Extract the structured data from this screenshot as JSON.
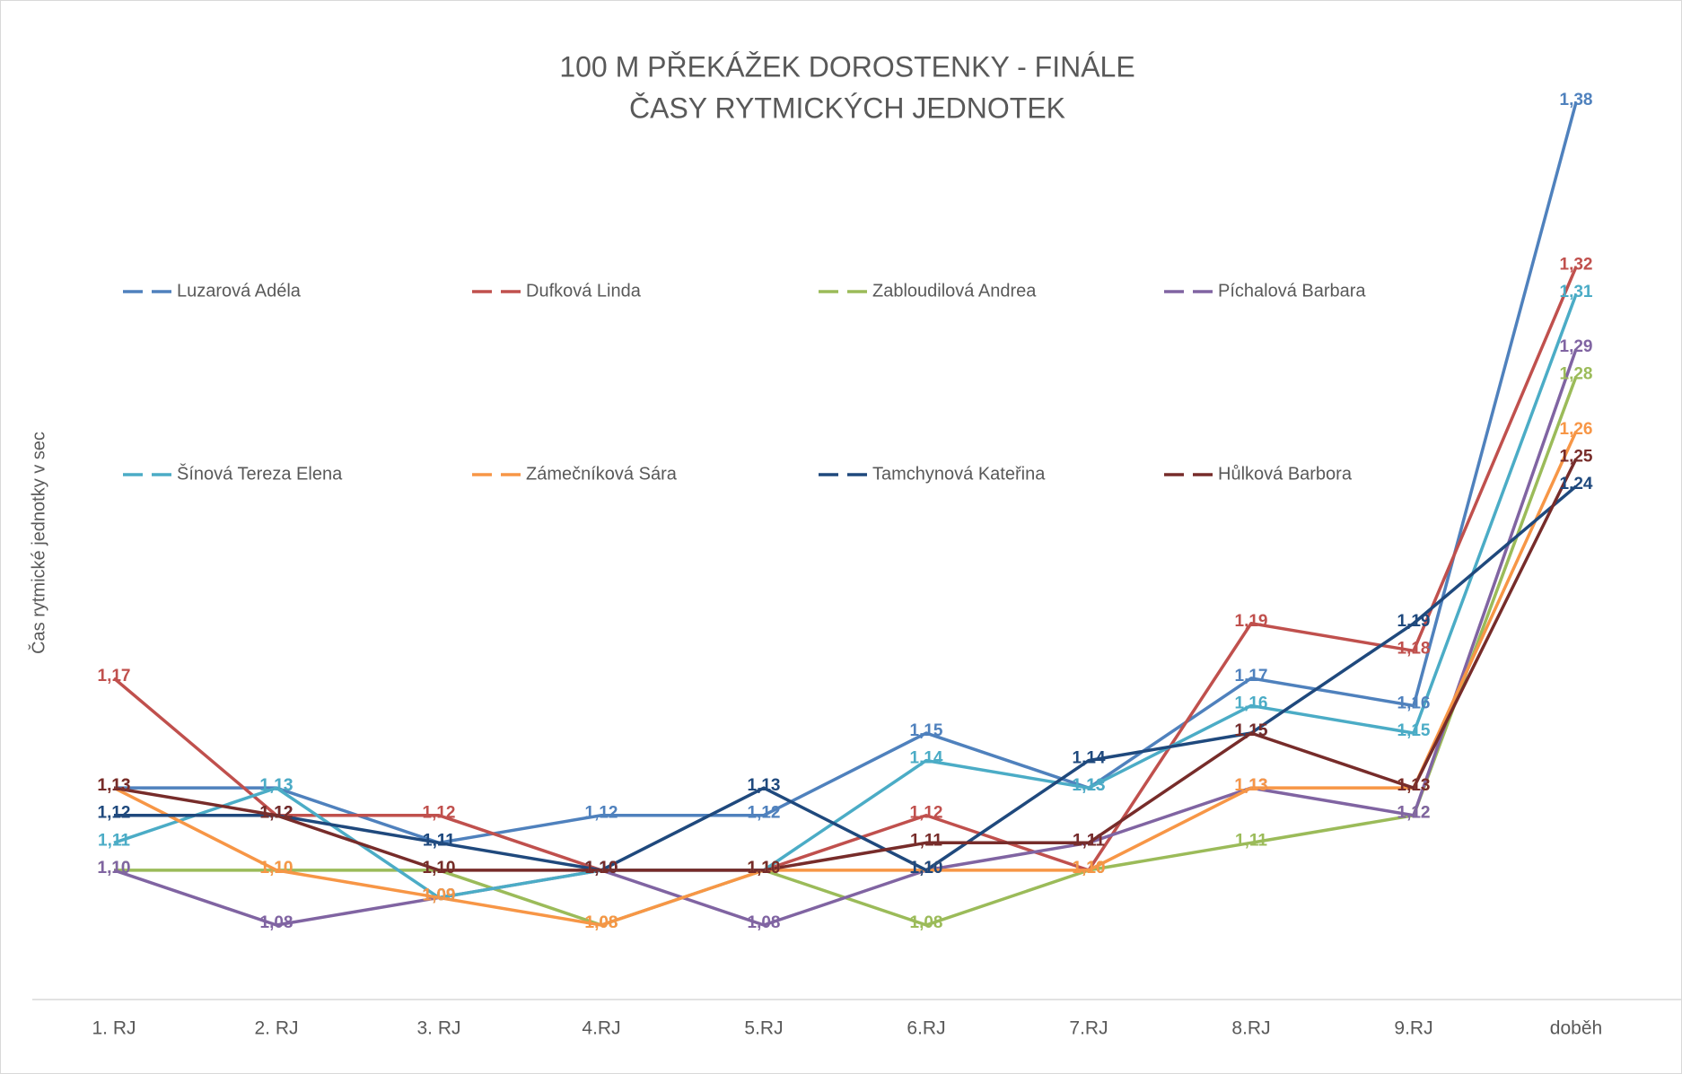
{
  "chart_data": {
    "type": "line",
    "title": "100 M PŘEKÁŽEK DOROSTENKY - FINÁLE",
    "subtitle": "ČASY RYTMICKÝCH JEDNOTEK",
    "y_label": "Čas rytmické jednotky v sec",
    "categories": [
      "1. RJ",
      "2. RJ",
      "3. RJ",
      "4.RJ",
      "5.RJ",
      "6.RJ",
      "7.RJ",
      "8.RJ",
      "9.RJ",
      "doběh"
    ],
    "series": [
      {
        "name": "Luzarová Adéla",
        "color": "#4f81bd",
        "values": [
          1.13,
          1.13,
          1.11,
          1.12,
          1.12,
          1.15,
          1.13,
          1.17,
          1.16,
          1.38
        ],
        "value_labels": [
          "1,13",
          "1,13",
          "1,11",
          "1,12",
          "1,12",
          "1,15",
          "1,13",
          "1,17",
          "1,16",
          "1,38"
        ]
      },
      {
        "name": "Dufková Linda",
        "color": "#c0504d",
        "values": [
          1.17,
          1.12,
          1.12,
          1.1,
          1.1,
          1.12,
          1.1,
          1.19,
          1.18,
          1.32
        ],
        "value_labels": [
          "1,17",
          "1,12",
          "1,12",
          "1,10",
          "1,10",
          "1,12",
          "1,10",
          "1,19",
          "1,18",
          "1,32"
        ]
      },
      {
        "name": "Zabloudilová Andrea",
        "color": "#9bbb59",
        "values": [
          1.1,
          1.1,
          1.1,
          1.08,
          1.1,
          1.08,
          1.1,
          1.11,
          1.12,
          1.28
        ],
        "value_labels": [
          "1,10",
          "1,10",
          "1,10",
          "1,08",
          "1,10",
          "1,08",
          "1,10",
          "1,11",
          "1,12",
          "1,28"
        ]
      },
      {
        "name": "Píchalová Barbara",
        "color": "#8064a2",
        "values": [
          1.1,
          1.08,
          1.09,
          1.1,
          1.08,
          1.1,
          1.11,
          1.13,
          1.12,
          1.29
        ],
        "value_labels": [
          "1,10",
          "1,08",
          "1,09",
          "1,10",
          "1,08",
          "1,10",
          "1,11",
          "1,13",
          "1,12",
          "1,29"
        ]
      },
      {
        "name": "Šínová Tereza Elena",
        "color": "#4bacc6",
        "values": [
          1.11,
          1.13,
          1.09,
          1.1,
          1.1,
          1.14,
          1.13,
          1.16,
          1.15,
          1.31
        ],
        "value_labels": [
          "1,11",
          "1,13",
          "1,09",
          "1,10",
          "1,10",
          "1,14",
          "1,13",
          "1,16",
          "1,15",
          "1,31"
        ]
      },
      {
        "name": "Zámečníková Sára",
        "color": "#f79646",
        "values": [
          1.13,
          1.1,
          1.09,
          1.08,
          1.1,
          1.1,
          1.1,
          1.13,
          1.13,
          1.26
        ],
        "value_labels": [
          "1,13",
          "1,10",
          "1,09",
          "1,08",
          "1,10",
          "1,10",
          "1,10",
          "1,13",
          "1,13",
          "1,26"
        ]
      },
      {
        "name": "Tamchynová Kateřina",
        "color": "#1f497d",
        "values": [
          1.12,
          1.12,
          1.11,
          1.1,
          1.13,
          1.1,
          1.14,
          1.15,
          1.19,
          1.24
        ],
        "value_labels": [
          "1,12",
          "1,12",
          "1,11",
          "1,10",
          "1,13",
          "1,10",
          "1,14",
          "1,15",
          "1,19",
          "1,24"
        ]
      },
      {
        "name": "Hůlková Barbora",
        "color": "#772c2a",
        "values": [
          1.13,
          1.12,
          1.1,
          1.1,
          1.1,
          1.11,
          1.11,
          1.15,
          1.13,
          1.25
        ],
        "value_labels": [
          "1,13",
          "1,12",
          "1,10",
          "1,10",
          "1,10",
          "1,11",
          "1,11",
          "1,15",
          "1,13",
          "1,25"
        ]
      }
    ],
    "legend": "top"
  }
}
